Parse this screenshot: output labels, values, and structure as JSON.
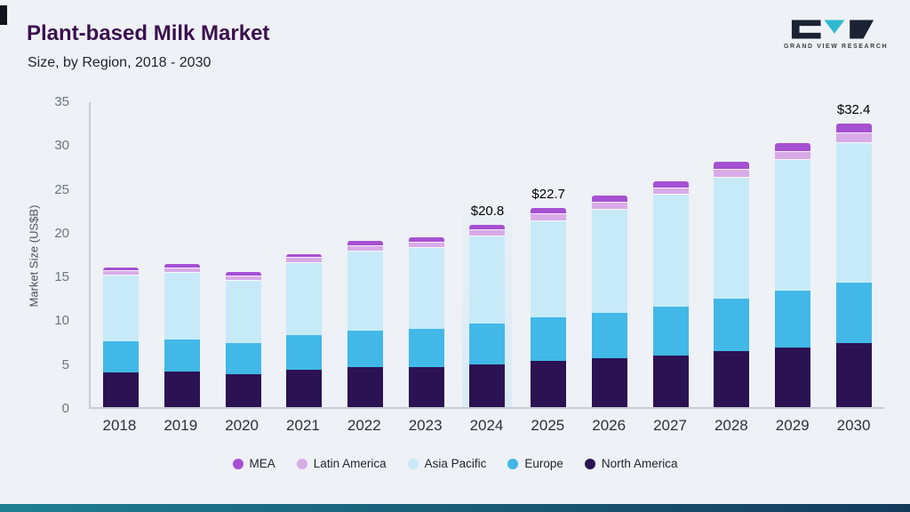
{
  "page": {
    "title": "Plant-based Milk Market",
    "subtitle": "Size, by Region, 2018 - 2030"
  },
  "logo": {
    "text": "GRAND VIEW RESEARCH"
  },
  "theme": {
    "background": "#eef1f5",
    "title_color": "#3b0f4f",
    "footer_bar_left": "#1f7f93",
    "footer_bar_right": "#143a5a"
  },
  "chart_data": {
    "type": "bar",
    "stacked": true,
    "title": "Plant-based Milk Market",
    "subtitle": "Size, by Region, 2018 - 2030",
    "xlabel": "",
    "ylabel": "Market Size (US$B)",
    "ylim": [
      0,
      35
    ],
    "yticks": [
      0,
      5,
      10,
      15,
      20,
      25,
      30,
      35
    ],
    "grid": false,
    "legend_position": "bottom",
    "categories": [
      "2018",
      "2019",
      "2020",
      "2021",
      "2022",
      "2023",
      "2024",
      "2025",
      "2026",
      "2027",
      "2028",
      "2029",
      "2030"
    ],
    "stack_order": "bottom-to-top",
    "series": [
      {
        "name": "North America",
        "color": "#2b1252",
        "values": [
          4.0,
          4.1,
          3.8,
          4.3,
          4.6,
          4.6,
          4.9,
          5.3,
          5.6,
          5.9,
          6.4,
          6.8,
          7.3
        ]
      },
      {
        "name": "Europe",
        "color": "#41b8e8",
        "values": [
          3.5,
          3.6,
          3.5,
          3.9,
          4.1,
          4.3,
          4.6,
          4.9,
          5.2,
          5.6,
          6.0,
          6.5,
          6.9
        ]
      },
      {
        "name": "Asia Pacific",
        "color": "#c7eaf8",
        "values": [
          7.5,
          7.6,
          7.1,
          8.2,
          9.1,
          9.3,
          10.0,
          11.0,
          11.7,
          12.7,
          13.8,
          14.9,
          15.9
        ]
      },
      {
        "name": "Latin America",
        "color": "#d8abe8",
        "values": [
          0.5,
          0.5,
          0.5,
          0.6,
          0.6,
          0.6,
          0.7,
          0.8,
          0.8,
          0.8,
          0.9,
          0.95,
          1.2
        ]
      },
      {
        "name": "MEA",
        "color": "#a650d2",
        "values": [
          0.4,
          0.5,
          0.5,
          0.5,
          0.6,
          0.6,
          0.6,
          0.7,
          0.8,
          0.8,
          0.9,
          0.95,
          1.1
        ]
      }
    ],
    "annotations": [
      {
        "category": "2024",
        "text": "$20.8"
      },
      {
        "category": "2025",
        "text": "$22.7"
      },
      {
        "category": "2030",
        "text": "$32.4"
      }
    ],
    "highlighted_category": "2024"
  }
}
